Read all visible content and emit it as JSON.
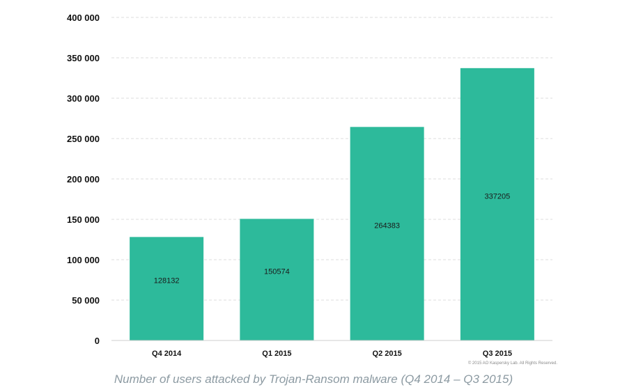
{
  "chart_data": {
    "type": "bar",
    "categories": [
      "Q4 2014",
      "Q1 2015",
      "Q2 2015",
      "Q3 2015"
    ],
    "values": [
      128132,
      150574,
      264383,
      337205
    ],
    "value_labels": [
      "128132",
      "150574",
      "264383",
      "337205"
    ],
    "ylim": [
      0,
      400000
    ],
    "yticks": [
      0,
      50000,
      100000,
      150000,
      200000,
      250000,
      300000,
      350000,
      400000
    ],
    "ytick_labels": [
      "0",
      "50 000",
      "100 000",
      "150 000",
      "200 000",
      "250 000",
      "300 000",
      "350 000",
      "400 000"
    ],
    "grid": true,
    "bar_color": "#2dba9b",
    "grid_color": "#dddddd",
    "caption": "Number of users attacked by Trojan-Ransom malware (Q4 2014 – Q3 2015)",
    "copyright": "© 2015 AO Kaspersky Lab. All Rights Reserved."
  }
}
